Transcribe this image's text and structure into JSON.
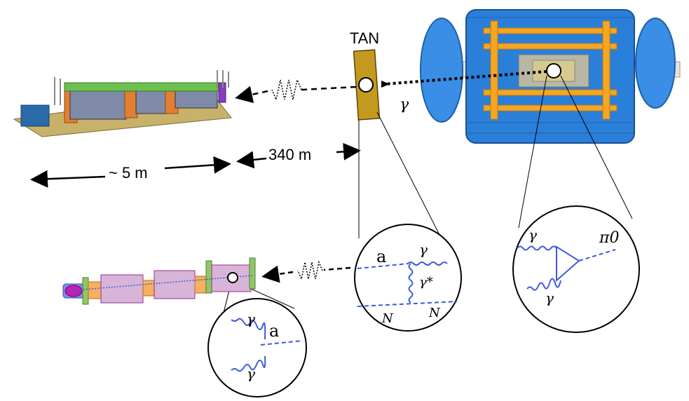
{
  "labels": {
    "tan": "TAN",
    "distance_detector": "~ 5 m",
    "distance_tunnel": "340 m",
    "gamma_beam": "γ"
  },
  "feynman_production": {
    "a": "a",
    "gamma_out": "γ",
    "gamma_star": "γ*",
    "n_left": "N",
    "n_right": "N"
  },
  "feynman_pi0": {
    "gamma_top": "γ",
    "gamma_bottom": "γ",
    "pion": "π0"
  },
  "feynman_decay": {
    "gamma_top": "γ",
    "gamma_bottom": "γ",
    "a": "a"
  },
  "colors": {
    "propagator_blue": "#3b5bdb",
    "tan_brown": "#c49a1e",
    "magnet_purple": "#d8b4d8",
    "flange_green": "#8fc765",
    "atlas_blue": "#1e6fd0",
    "atlas_orange": "#f5a623"
  }
}
